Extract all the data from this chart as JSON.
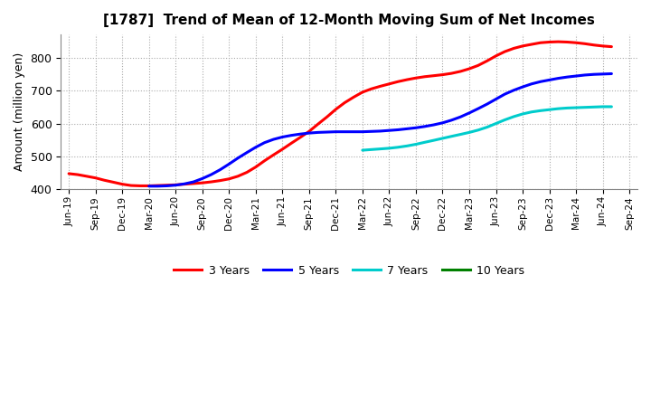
{
  "title": "[1787]  Trend of Mean of 12-Month Moving Sum of Net Incomes",
  "ylabel": "Amount (million yen)",
  "ylim": [
    400,
    870
  ],
  "yticks": [
    400,
    500,
    600,
    700,
    800
  ],
  "background_color": "#ffffff",
  "grid_color": "#aaaaaa",
  "x_labels": [
    "Jun-19",
    "Sep-19",
    "Dec-19",
    "Mar-20",
    "Jun-20",
    "Sep-20",
    "Dec-20",
    "Mar-21",
    "Jun-21",
    "Sep-21",
    "Dec-21",
    "Mar-22",
    "Jun-22",
    "Sep-22",
    "Dec-22",
    "Mar-23",
    "Jun-23",
    "Sep-23",
    "Dec-23",
    "Mar-24",
    "Jun-24",
    "Sep-24"
  ],
  "series": {
    "3 Years": {
      "color": "#ff0000",
      "x": [
        0,
        0.33,
        0.67,
        1,
        1.33,
        1.67,
        2,
        2.33,
        2.67,
        3,
        3.33,
        3.67,
        4,
        4.33,
        4.67,
        5,
        5.33,
        5.67,
        6,
        6.33,
        6.67,
        7,
        7.33,
        7.67,
        8,
        8.33,
        8.67,
        9,
        9.33,
        9.67,
        10,
        10.33,
        10.67,
        11,
        11.33,
        11.67,
        12,
        12.33,
        12.67,
        13,
        13.33,
        13.67,
        14,
        14.33,
        14.67,
        15,
        15.33,
        15.67,
        16,
        16.33,
        16.67,
        17,
        17.33,
        17.67,
        18,
        18.33,
        18.67,
        19,
        19.33,
        19.67,
        20,
        20.33
      ],
      "y": [
        448,
        445,
        440,
        435,
        428,
        422,
        416,
        412,
        411,
        411,
        412,
        413,
        414,
        416,
        418,
        420,
        423,
        427,
        432,
        440,
        452,
        468,
        487,
        505,
        522,
        540,
        558,
        576,
        598,
        620,
        643,
        663,
        680,
        695,
        705,
        713,
        720,
        727,
        733,
        738,
        742,
        745,
        748,
        752,
        758,
        766,
        776,
        790,
        805,
        818,
        828,
        835,
        840,
        845,
        847,
        848,
        847,
        845,
        842,
        838,
        835,
        833
      ]
    },
    "5 Years": {
      "color": "#0000ff",
      "x": [
        3,
        3.33,
        3.67,
        4,
        4.33,
        4.67,
        5,
        5.33,
        5.67,
        6,
        6.33,
        6.67,
        7,
        7.33,
        7.67,
        8,
        8.33,
        8.67,
        9,
        9.33,
        9.67,
        10,
        10.33,
        10.67,
        11,
        11.33,
        11.67,
        12,
        12.33,
        12.67,
        13,
        13.33,
        13.67,
        14,
        14.33,
        14.67,
        15,
        15.33,
        15.67,
        16,
        16.33,
        16.67,
        17,
        17.33,
        17.67,
        18,
        18.33,
        18.67,
        19,
        19.33,
        19.67,
        20,
        20.33
      ],
      "y": [
        410,
        410,
        411,
        413,
        417,
        423,
        433,
        445,
        460,
        477,
        495,
        512,
        528,
        542,
        552,
        559,
        564,
        568,
        571,
        573,
        574,
        575,
        575,
        575,
        575,
        576,
        577,
        579,
        581,
        584,
        587,
        591,
        596,
        602,
        610,
        620,
        632,
        645,
        659,
        674,
        689,
        701,
        711,
        720,
        727,
        732,
        737,
        741,
        744,
        747,
        749,
        750,
        751
      ]
    },
    "7 Years": {
      "color": "#00cccc",
      "x": [
        11,
        11.33,
        11.67,
        12,
        12.33,
        12.67,
        13,
        13.33,
        13.67,
        14,
        14.33,
        14.67,
        15,
        15.33,
        15.67,
        16,
        16.33,
        16.67,
        17,
        17.33,
        17.67,
        18,
        18.33,
        18.67,
        19,
        19.33,
        19.67,
        20,
        20.33
      ],
      "y": [
        519,
        521,
        523,
        525,
        528,
        532,
        537,
        543,
        549,
        555,
        561,
        567,
        573,
        580,
        589,
        600,
        611,
        621,
        629,
        635,
        639,
        642,
        645,
        647,
        648,
        649,
        650,
        651,
        651
      ]
    },
    "10 Years": {
      "color": "#008000",
      "x": [],
      "y": []
    }
  },
  "legend_order": [
    "3 Years",
    "5 Years",
    "7 Years",
    "10 Years"
  ]
}
